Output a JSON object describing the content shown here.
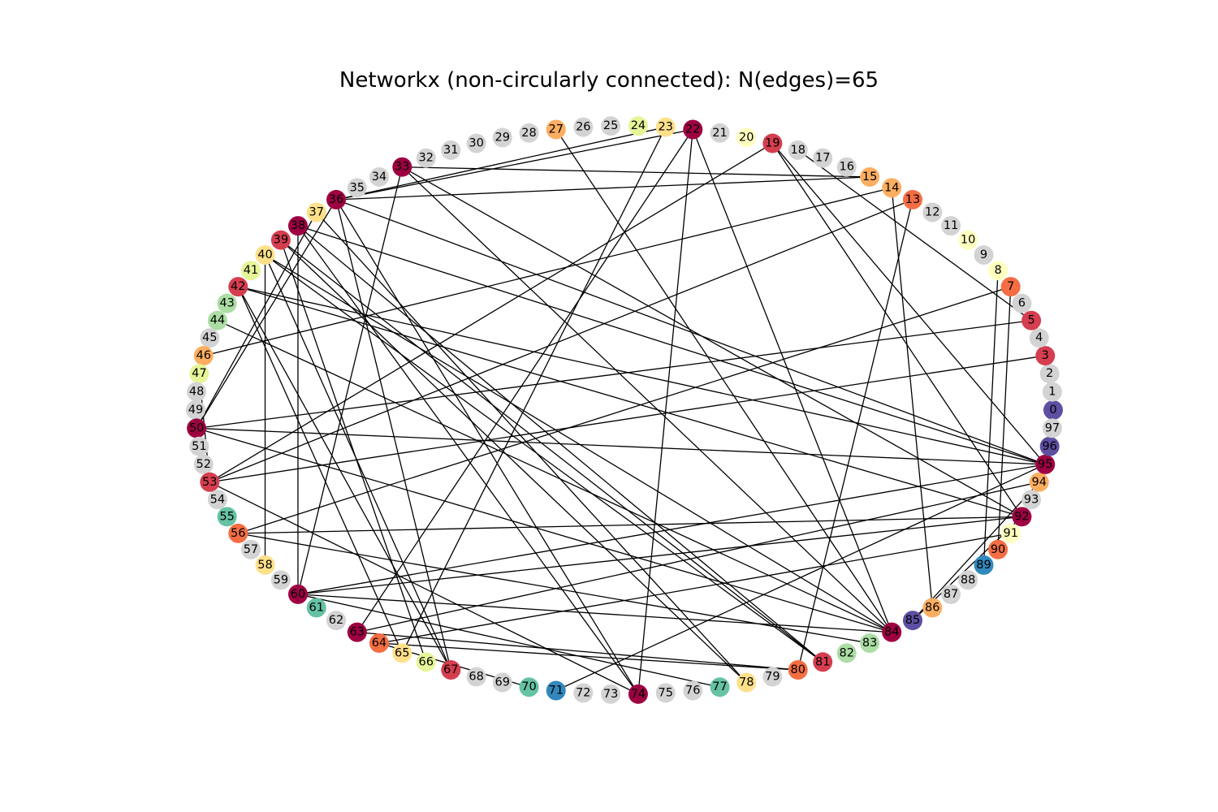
{
  "title": "Networkx (non-circularly connected): N(edges)=65",
  "colors": {
    "gray": "#d3d3d3",
    "dark_red": "#9e0142",
    "red": "#d53e4f",
    "orange_red": "#f46d43",
    "orange": "#fdae61",
    "light_orange": "#fee08b",
    "pale_yellow": "#ffffbf",
    "yellow_green": "#e6f598",
    "light_green": "#abdda4",
    "teal": "#66c2a5",
    "blue": "#3288bd",
    "purple": "#5e4fa2"
  },
  "nodes": [
    {
      "id": 0,
      "color": "purple"
    },
    {
      "id": 1,
      "color": "gray"
    },
    {
      "id": 2,
      "color": "gray"
    },
    {
      "id": 3,
      "color": "red"
    },
    {
      "id": 4,
      "color": "gray"
    },
    {
      "id": 5,
      "color": "red"
    },
    {
      "id": 6,
      "color": "gray"
    },
    {
      "id": 7,
      "color": "orange_red"
    },
    {
      "id": 8,
      "color": "pale_yellow"
    },
    {
      "id": 9,
      "color": "gray"
    },
    {
      "id": 10,
      "color": "pale_yellow"
    },
    {
      "id": 11,
      "color": "gray"
    },
    {
      "id": 12,
      "color": "gray"
    },
    {
      "id": 13,
      "color": "orange_red"
    },
    {
      "id": 14,
      "color": "orange"
    },
    {
      "id": 15,
      "color": "orange"
    },
    {
      "id": 16,
      "color": "gray"
    },
    {
      "id": 17,
      "color": "gray"
    },
    {
      "id": 18,
      "color": "gray"
    },
    {
      "id": 19,
      "color": "red"
    },
    {
      "id": 20,
      "color": "pale_yellow"
    },
    {
      "id": 21,
      "color": "gray"
    },
    {
      "id": 22,
      "color": "dark_red"
    },
    {
      "id": 23,
      "color": "light_orange"
    },
    {
      "id": 24,
      "color": "yellow_green"
    },
    {
      "id": 25,
      "color": "gray"
    },
    {
      "id": 26,
      "color": "gray"
    },
    {
      "id": 27,
      "color": "orange"
    },
    {
      "id": 28,
      "color": "gray"
    },
    {
      "id": 29,
      "color": "gray"
    },
    {
      "id": 30,
      "color": "gray"
    },
    {
      "id": 31,
      "color": "gray"
    },
    {
      "id": 32,
      "color": "gray"
    },
    {
      "id": 33,
      "color": "dark_red"
    },
    {
      "id": 34,
      "color": "gray"
    },
    {
      "id": 35,
      "color": "gray"
    },
    {
      "id": 36,
      "color": "dark_red"
    },
    {
      "id": 37,
      "color": "light_orange"
    },
    {
      "id": 38,
      "color": "dark_red"
    },
    {
      "id": 39,
      "color": "red"
    },
    {
      "id": 40,
      "color": "light_orange"
    },
    {
      "id": 41,
      "color": "yellow_green"
    },
    {
      "id": 42,
      "color": "red"
    },
    {
      "id": 43,
      "color": "light_green"
    },
    {
      "id": 44,
      "color": "light_green"
    },
    {
      "id": 45,
      "color": "gray"
    },
    {
      "id": 46,
      "color": "orange"
    },
    {
      "id": 47,
      "color": "yellow_green"
    },
    {
      "id": 48,
      "color": "gray"
    },
    {
      "id": 49,
      "color": "gray"
    },
    {
      "id": 50,
      "color": "dark_red"
    },
    {
      "id": 51,
      "color": "gray"
    },
    {
      "id": 52,
      "color": "gray"
    },
    {
      "id": 53,
      "color": "red"
    },
    {
      "id": 54,
      "color": "gray"
    },
    {
      "id": 55,
      "color": "teal"
    },
    {
      "id": 56,
      "color": "orange_red"
    },
    {
      "id": 57,
      "color": "gray"
    },
    {
      "id": 58,
      "color": "light_orange"
    },
    {
      "id": 59,
      "color": "gray"
    },
    {
      "id": 60,
      "color": "dark_red"
    },
    {
      "id": 61,
      "color": "teal"
    },
    {
      "id": 62,
      "color": "gray"
    },
    {
      "id": 63,
      "color": "dark_red"
    },
    {
      "id": 64,
      "color": "orange_red"
    },
    {
      "id": 65,
      "color": "light_orange"
    },
    {
      "id": 66,
      "color": "yellow_green"
    },
    {
      "id": 67,
      "color": "red"
    },
    {
      "id": 68,
      "color": "gray"
    },
    {
      "id": 69,
      "color": "gray"
    },
    {
      "id": 70,
      "color": "teal"
    },
    {
      "id": 71,
      "color": "blue"
    },
    {
      "id": 72,
      "color": "gray"
    },
    {
      "id": 73,
      "color": "gray"
    },
    {
      "id": 74,
      "color": "dark_red"
    },
    {
      "id": 75,
      "color": "gray"
    },
    {
      "id": 76,
      "color": "gray"
    },
    {
      "id": 77,
      "color": "teal"
    },
    {
      "id": 78,
      "color": "light_orange"
    },
    {
      "id": 79,
      "color": "gray"
    },
    {
      "id": 80,
      "color": "orange_red"
    },
    {
      "id": 81,
      "color": "red"
    },
    {
      "id": 82,
      "color": "light_green"
    },
    {
      "id": 83,
      "color": "light_green"
    },
    {
      "id": 84,
      "color": "dark_red"
    },
    {
      "id": 85,
      "color": "purple"
    },
    {
      "id": 86,
      "color": "orange"
    },
    {
      "id": 87,
      "color": "gray"
    },
    {
      "id": 88,
      "color": "gray"
    },
    {
      "id": 89,
      "color": "blue"
    },
    {
      "id": 90,
      "color": "orange_red"
    },
    {
      "id": 91,
      "color": "pale_yellow"
    },
    {
      "id": 92,
      "color": "dark_red"
    },
    {
      "id": 93,
      "color": "gray"
    },
    {
      "id": 94,
      "color": "orange"
    },
    {
      "id": 95,
      "color": "dark_red"
    },
    {
      "id": 96,
      "color": "purple"
    },
    {
      "id": 97,
      "color": "gray"
    }
  ],
  "edges": [
    [
      22,
      74
    ],
    [
      22,
      63
    ],
    [
      22,
      84
    ],
    [
      22,
      36
    ],
    [
      23,
      65
    ],
    [
      23,
      36
    ],
    [
      27,
      84
    ],
    [
      19,
      53
    ],
    [
      19,
      92
    ],
    [
      19,
      95
    ],
    [
      15,
      36
    ],
    [
      15,
      33
    ],
    [
      14,
      46
    ],
    [
      14,
      86
    ],
    [
      13,
      53
    ],
    [
      13,
      80
    ],
    [
      3,
      53
    ],
    [
      5,
      50
    ],
    [
      5,
      18
    ],
    [
      7,
      56
    ],
    [
      7,
      90
    ],
    [
      8,
      89
    ],
    [
      95,
      60
    ],
    [
      95,
      50
    ],
    [
      95,
      38
    ],
    [
      95,
      36
    ],
    [
      95,
      71
    ],
    [
      94,
      63
    ],
    [
      94,
      85
    ],
    [
      92,
      33
    ],
    [
      92,
      42
    ],
    [
      92,
      56
    ],
    [
      92,
      60
    ],
    [
      92,
      85
    ],
    [
      91,
      64
    ],
    [
      84,
      50
    ],
    [
      84,
      40
    ],
    [
      84,
      60
    ],
    [
      84,
      44
    ],
    [
      84,
      33
    ],
    [
      83,
      56
    ],
    [
      81,
      39
    ],
    [
      81,
      38
    ],
    [
      81,
      40
    ],
    [
      80,
      63
    ],
    [
      80,
      64
    ],
    [
      78,
      37
    ],
    [
      78,
      39
    ],
    [
      77,
      60
    ],
    [
      74,
      36
    ],
    [
      74,
      38
    ],
    [
      67,
      40
    ],
    [
      67,
      42
    ],
    [
      67,
      36
    ],
    [
      66,
      39
    ],
    [
      65,
      42
    ],
    [
      60,
      33
    ],
    [
      60,
      38
    ],
    [
      58,
      40
    ],
    [
      53,
      47
    ],
    [
      50,
      37
    ],
    [
      50,
      36
    ],
    [
      70,
      64
    ],
    [
      42,
      95
    ],
    [
      74,
      53
    ]
  ]
}
